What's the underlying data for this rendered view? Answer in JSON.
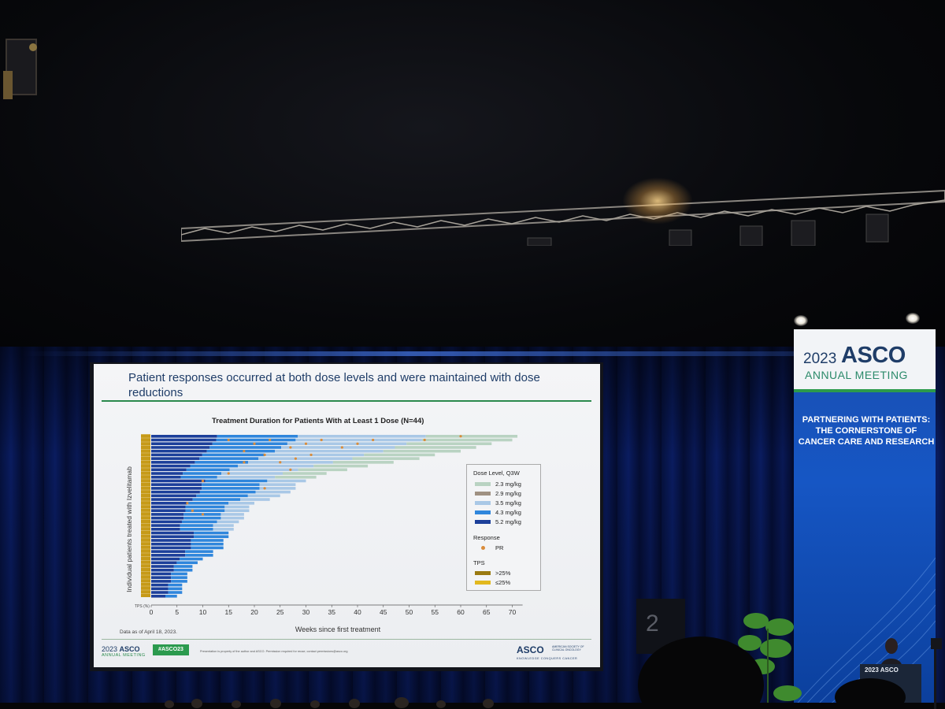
{
  "slide": {
    "title": "Patient responses occurred at both dose levels and were maintained with dose reductions",
    "data_note": "Data as of April 18, 2023.",
    "footer": {
      "year": "2023",
      "org": "ASCO",
      "meeting": "ANNUAL MEETING",
      "hashtag": "#ASCO23",
      "notice": "Presentation is property of the author and ASCO. Permission required for reuse; contact permissions@asco.org",
      "logo": "ASCO",
      "society": "AMERICAN SOCIETY OF CLINICAL ONCOLOGY",
      "tagline": "KNOWLEDGE CONQUERS CANCER"
    }
  },
  "chart_data": {
    "type": "bar",
    "orientation": "horizontal",
    "title": "Treatment Duration for Patients With at Least 1 Dose (N=44)",
    "xlabel": "Weeks since first treatment",
    "ylabel": "Individual patients treated with Izvelitamab",
    "tps_axis_label": "TPS (%)",
    "xlim": [
      0,
      72
    ],
    "xticks": [
      0,
      5,
      10,
      15,
      20,
      25,
      30,
      35,
      40,
      45,
      50,
      55,
      60,
      65,
      70
    ],
    "n_patients": 44,
    "legend_position": "right",
    "legend": {
      "dose_title": "Dose Level, Q3W",
      "doses": [
        {
          "label": "2.3 mg/kg",
          "color": "#b9d3c2"
        },
        {
          "label": "2.9 mg/kg",
          "color": "#9f9182"
        },
        {
          "label": "3.5 mg/kg",
          "color": "#a9c8e6"
        },
        {
          "label": "4.3 mg/kg",
          "color": "#2f86dc"
        },
        {
          "label": "5.2 mg/kg",
          "color": "#1c3f9a"
        }
      ],
      "response_title": "Response",
      "response_item": {
        "label": "PR",
        "color": "#d98c3b"
      },
      "tps_title": "TPS",
      "tps_items": [
        {
          "label": ">25%",
          "color": "#9a7a12"
        },
        {
          "label": "≤25%",
          "color": "#e2b81f"
        }
      ]
    },
    "durations_weeks": [
      71,
      70,
      66,
      63,
      60,
      55,
      52,
      47,
      42,
      38,
      34,
      32,
      30,
      28,
      28,
      27,
      25,
      23,
      20,
      19,
      19,
      18,
      18,
      17,
      16,
      16,
      15,
      15,
      14,
      14,
      14,
      12,
      12,
      10,
      9,
      8,
      8,
      7,
      7,
      7,
      6,
      6,
      6,
      5
    ],
    "pr_points": [
      {
        "patient": 1,
        "week": 60
      },
      {
        "patient": 2,
        "week": 15
      },
      {
        "patient": 2,
        "week": 23
      },
      {
        "patient": 2,
        "week": 33
      },
      {
        "patient": 2,
        "week": 43
      },
      {
        "patient": 2,
        "week": 53
      },
      {
        "patient": 3,
        "week": 20
      },
      {
        "patient": 3,
        "week": 30
      },
      {
        "patient": 3,
        "week": 40
      },
      {
        "patient": 4,
        "week": 27
      },
      {
        "patient": 4,
        "week": 37
      },
      {
        "patient": 5,
        "week": 18
      },
      {
        "patient": 6,
        "week": 22
      },
      {
        "patient": 6,
        "week": 31
      },
      {
        "patient": 7,
        "week": 28
      },
      {
        "patient": 8,
        "week": 18
      },
      {
        "patient": 8,
        "week": 25
      },
      {
        "patient": 10,
        "week": 27
      },
      {
        "patient": 11,
        "week": 15
      },
      {
        "patient": 13,
        "week": 10
      },
      {
        "patient": 15,
        "week": 22
      },
      {
        "patient": 19,
        "week": 7
      },
      {
        "patient": 21,
        "week": 8
      },
      {
        "patient": 22,
        "week": 10
      }
    ]
  },
  "banner": {
    "year": "2023",
    "org": "ASCO",
    "meeting": "ANNUAL MEETING",
    "tagline": "PARTNERING WITH PATIENTS: THE CORNERSTONE OF CANCER CARE AND RESEARCH"
  },
  "podium": {
    "year": "2023",
    "org": "ASCO"
  },
  "stage_sign": "2"
}
